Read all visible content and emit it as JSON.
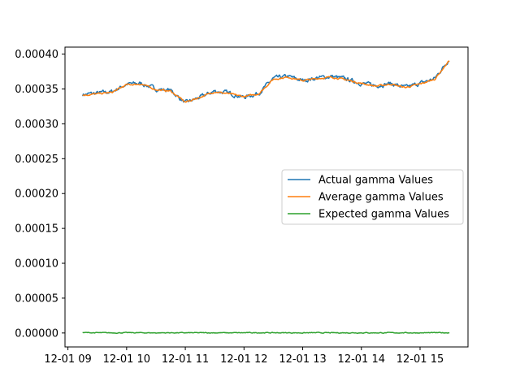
{
  "chart_data": {
    "type": "line",
    "title": "",
    "xlabel": "",
    "ylabel": "",
    "x_unit": "datetime",
    "xlim": [
      "12-01 08:57",
      "12-01 15:49"
    ],
    "ylim": [
      -2e-05,
      0.00041
    ],
    "x_ticks": [
      {
        "value": "12-01 09",
        "label": "12-01 09"
      },
      {
        "value": "12-01 10",
        "label": "12-01 10"
      },
      {
        "value": "12-01 11",
        "label": "12-01 11"
      },
      {
        "value": "12-01 12",
        "label": "12-01 12"
      },
      {
        "value": "12-01 13",
        "label": "12-01 13"
      },
      {
        "value": "12-01 14",
        "label": "12-01 14"
      },
      {
        "value": "12-01 15",
        "label": "12-01 15"
      }
    ],
    "y_ticks": [
      {
        "value": 0.0,
        "label": "0.00000"
      },
      {
        "value": 5e-05,
        "label": "0.00005"
      },
      {
        "value": 0.0001,
        "label": "0.00010"
      },
      {
        "value": 0.00015,
        "label": "0.00015"
      },
      {
        "value": 0.0002,
        "label": "0.00020"
      },
      {
        "value": 0.00025,
        "label": "0.00025"
      },
      {
        "value": 0.0003,
        "label": "0.00030"
      },
      {
        "value": 0.00035,
        "label": "0.00035"
      },
      {
        "value": 0.0004,
        "label": "0.00040"
      }
    ],
    "legend": {
      "position": "center-right"
    },
    "grid": false,
    "x": [
      "12-01 09:15",
      "12-01 09:30",
      "12-01 09:45",
      "12-01 10:00",
      "12-01 10:15",
      "12-01 10:30",
      "12-01 10:45",
      "12-01 11:00",
      "12-01 11:15",
      "12-01 11:30",
      "12-01 11:45",
      "12-01 12:00",
      "12-01 12:15",
      "12-01 12:30",
      "12-01 12:45",
      "12-01 13:00",
      "12-01 13:15",
      "12-01 13:30",
      "12-01 13:45",
      "12-01 14:00",
      "12-01 14:15",
      "12-01 14:30",
      "12-01 14:45",
      "12-01 15:00",
      "12-01 15:15",
      "12-01 15:30"
    ],
    "series": [
      {
        "name": "Actual gamma Values",
        "color": "#1f77b4",
        "values": [
          0.000342,
          0.000344,
          0.000346,
          0.000357,
          0.000358,
          0.00035,
          0.000348,
          0.00033,
          0.000338,
          0.000347,
          0.000344,
          0.000338,
          0.000344,
          0.000365,
          0.000368,
          0.000362,
          0.000366,
          0.000368,
          0.000364,
          0.000358,
          0.000355,
          0.000358,
          0.000352,
          0.000358,
          0.000365,
          0.000393
        ]
      },
      {
        "name": "Average gamma Values",
        "color": "#ff7f0e",
        "values": [
          0.000341,
          0.000343,
          0.000345,
          0.000356,
          0.000357,
          0.000349,
          0.000347,
          0.000331,
          0.000338,
          0.000346,
          0.000343,
          0.000339,
          0.000343,
          0.000364,
          0.000367,
          0.000362,
          0.000365,
          0.000367,
          0.000363,
          0.000358,
          0.000354,
          0.000357,
          0.000352,
          0.000357,
          0.000364,
          0.000391
        ]
      },
      {
        "name": "Expected gamma Values",
        "color": "#2ca02c",
        "values": [
          5e-07,
          3e-07,
          2e-07,
          4e-07,
          3e-07,
          2e-07,
          3e-07,
          2e-07,
          3e-07,
          3e-07,
          2e-07,
          3e-07,
          4e-07,
          3e-07,
          3e-07,
          2e-07,
          3e-07,
          2e-07,
          3e-07,
          3e-07,
          2e-07,
          3e-07,
          3e-07,
          2e-07,
          3e-07,
          4e-07
        ]
      }
    ]
  }
}
